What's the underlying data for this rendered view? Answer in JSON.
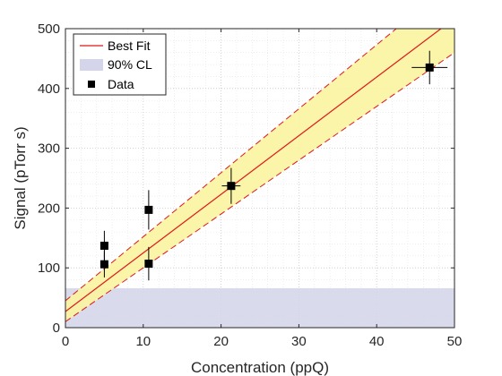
{
  "chart_data": {
    "type": "scatter",
    "xlabel": "Concentration (ppQ)",
    "ylabel": "Signal (pTorr s)",
    "xlim": [
      0,
      50
    ],
    "ylim": [
      0,
      500
    ],
    "xticks": [
      0,
      10,
      20,
      30,
      40,
      50
    ],
    "yticks": [
      0,
      100,
      200,
      300,
      400,
      500
    ],
    "grid": "dotted",
    "legend_position": "top-left",
    "legend": {
      "best_fit": "Best Fit",
      "cl": "90% CL",
      "data": "Data"
    },
    "series": [
      {
        "name": "Data",
        "points": [
          {
            "x": 5.0,
            "y": 137,
            "yerr": 25,
            "xerr": 0
          },
          {
            "x": 5.0,
            "y": 106,
            "yerr": 22,
            "xerr": 0
          },
          {
            "x": 10.7,
            "y": 197,
            "yerr": 33,
            "xerr": 0
          },
          {
            "x": 10.7,
            "y": 107,
            "yerr": 28,
            "xerr": 0
          },
          {
            "x": 21.3,
            "y": 237,
            "yerr": 30,
            "xerr": 1.2
          },
          {
            "x": 46.8,
            "y": 435,
            "yerr": 28,
            "xerr": 2.3
          }
        ]
      },
      {
        "name": "Best Fit",
        "line": {
          "intercept": 27,
          "slope": 9.8
        },
        "band_lower": {
          "intercept": 10,
          "slope": 9.0
        },
        "band_upper": {
          "intercept": 45,
          "slope": 10.7
        }
      },
      {
        "name": "90% CL",
        "threshold": 66
      }
    ],
    "colors": {
      "fit": "#e0161b",
      "band": "#faf4a0",
      "cl": "#d4d4ea",
      "data": "#000000",
      "axis": "#262626",
      "grid": "#c8c8c8"
    }
  }
}
